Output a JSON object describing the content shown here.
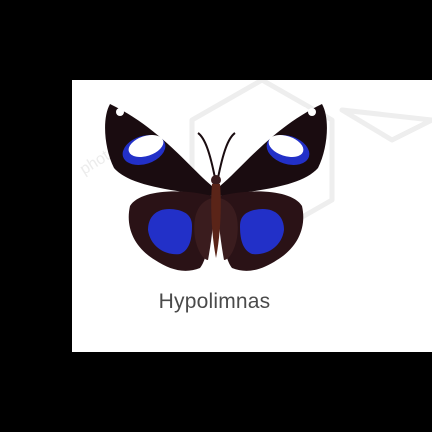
{
  "image": {
    "caption": "Hypolimnas",
    "watermark_text": "photos",
    "colors": {
      "background": "#000000",
      "card": "#ffffff",
      "wing_dark": "#1a0c10",
      "wing_brown": "#3a1c1e",
      "blue_patch": "#2230c8",
      "white_spot": "#ffffff",
      "body": "#5a2418",
      "caption_text": "#4a4a4a"
    }
  }
}
